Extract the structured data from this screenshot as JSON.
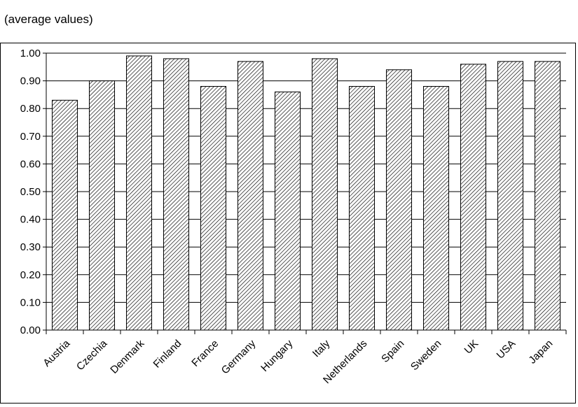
{
  "subtitle": "(average values)",
  "chart_data": {
    "type": "bar",
    "title": "",
    "subtitle": "(average values)",
    "xlabel": "",
    "ylabel": "",
    "categories": [
      "Austria",
      "Czechia",
      "Denmark",
      "Finland",
      "France",
      "Germany",
      "Hungary",
      "Italy",
      "Netherlands",
      "Spain",
      "Sweden",
      "UK",
      "USA",
      "Japan"
    ],
    "values": [
      0.83,
      0.9,
      0.99,
      0.98,
      0.88,
      0.97,
      0.86,
      0.98,
      0.88,
      0.94,
      0.88,
      0.96,
      0.97,
      0.97
    ],
    "ylim": [
      0,
      1.0
    ],
    "yticks": [
      "0.00",
      "0.10",
      "0.20",
      "0.30",
      "0.40",
      "0.50",
      "0.60",
      "0.70",
      "0.80",
      "0.90",
      "1.00"
    ],
    "grid": true,
    "legend": "none",
    "bar_fill": "diagonal-hatch",
    "colors": {
      "bar_stroke": "#000000",
      "hatch": "#000000",
      "background": "#ffffff"
    }
  }
}
